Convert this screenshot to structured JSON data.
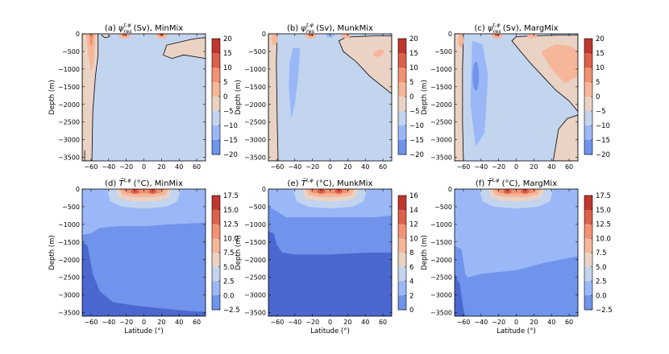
{
  "figure": {
    "panels": [
      {
        "title": "(a) ψ_res^{t,φ} (Sv), MinMix",
        "title_main": "ψ",
        "title_sup": "t,φ",
        "title_sub": "res",
        "title_rest": " (Sv), MinMix",
        "prefix": "(a) "
      },
      {
        "title": "(b) ψ_res^{t,φ} (Sv), MunkMix",
        "title_main": "ψ",
        "title_sup": "t,φ",
        "title_sub": "res",
        "title_rest": " (Sv), MunkMix",
        "prefix": "(b) "
      },
      {
        "title": "(c) ψ_res^{t,φ} (Sv), MargMix",
        "title_main": "ψ",
        "title_sup": "t,φ",
        "title_sub": "res",
        "title_rest": " (Sv), MargMix",
        "prefix": "(c) "
      },
      {
        "title": "(d) T̄^{t,φ} (°C), MinMix",
        "title_main": "T̄",
        "title_sup": "t,φ",
        "title_sub": "",
        "title_rest": " (°C), MinMix",
        "prefix": "(d) "
      },
      {
        "title": "(e) T̄^{t,φ} (°C), MunkMix",
        "title_main": "T̄",
        "title_sup": "t,φ",
        "title_sub": "",
        "title_rest": " (°C), MunkMix",
        "prefix": "(e) "
      },
      {
        "title": "(f) T̄^{t,φ} (°C), MargMix",
        "title_main": "T̄",
        "title_sup": "t,φ",
        "title_sub": "",
        "title_rest": " (°C), MargMix",
        "prefix": "(f) "
      }
    ],
    "ylabel": "Depth (m)",
    "xlabel": "Latitude (°)",
    "xticks": [
      "−60",
      "−40",
      "−20",
      "0",
      "20",
      "40",
      "60"
    ],
    "yticks": [
      "0",
      "−500",
      "−1000",
      "−1500",
      "−2000",
      "−2500",
      "−3000",
      "−3500"
    ],
    "colors": {
      "c_neg20": "#4a68cf",
      "c_neg15": "#7093eb",
      "c_neg10": "#9ab8f8",
      "c_neg5": "#c3d4ee",
      "c_0": "#ead3c4",
      "c_5": "#f5b69a",
      "c_10": "#f29272",
      "c_15": "#dd604b",
      "c_20": "#c0362d"
    }
  },
  "chart_data": [
    {
      "type": "contourf",
      "panel": "a",
      "variable": "residual overturning streamfunction",
      "units": "Sv",
      "experiment": "MinMix",
      "xlim": [
        -70,
        70
      ],
      "ylim": [
        -3600,
        0
      ],
      "colorbar": {
        "levels": [
          -20,
          -15,
          -10,
          -5,
          0,
          5,
          10,
          15,
          20
        ],
        "ticks": [
          "20",
          "15",
          "10",
          "5",
          "0",
          "−5",
          "−10",
          "−15",
          "−20"
        ]
      },
      "features": [
        {
          "region": "southern cell",
          "sign": "positive",
          "lat_range": [
            -70,
            -52
          ],
          "depth_range": [
            -3600,
            0
          ],
          "max_value": 15
        },
        {
          "region": "northern upper cell",
          "sign": "positive",
          "lat_range": [
            22,
            70
          ],
          "depth_range": [
            -700,
            -150
          ],
          "max_value": 5
        },
        {
          "region": "interior",
          "sign": "negative",
          "min_value": -5
        }
      ]
    },
    {
      "type": "contourf",
      "panel": "b",
      "variable": "residual overturning streamfunction",
      "units": "Sv",
      "experiment": "MunkMix",
      "xlim": [
        -70,
        70
      ],
      "ylim": [
        -3600,
        0
      ],
      "colorbar": {
        "levels": [
          -20,
          -15,
          -10,
          -5,
          0,
          5,
          10,
          15,
          20
        ],
        "ticks": [
          "20",
          "15",
          "10",
          "5",
          "0",
          "−5",
          "−10",
          "−15",
          "−20"
        ]
      },
      "features": [
        {
          "region": "southern cell",
          "sign": "positive",
          "lat_range": [
            -70,
            -58
          ],
          "depth_range": [
            -3600,
            0
          ],
          "max_value": 15
        },
        {
          "region": "northern cell",
          "sign": "positive",
          "lat_range": [
            10,
            70
          ],
          "depth_range": [
            -1700,
            0
          ],
          "max_value": 10
        },
        {
          "region": "southern interior",
          "sign": "negative",
          "min_value": -10
        }
      ]
    },
    {
      "type": "contourf",
      "panel": "c",
      "variable": "residual overturning streamfunction",
      "units": "Sv",
      "experiment": "MargMix",
      "xlim": [
        -70,
        70
      ],
      "ylim": [
        -3600,
        0
      ],
      "colorbar": {
        "levels": [
          -20,
          -15,
          -10,
          -5,
          0,
          5,
          10,
          15,
          20
        ],
        "ticks": [
          "20",
          "15",
          "10",
          "5",
          "0",
          "−5",
          "−10",
          "−15",
          "−20"
        ]
      },
      "features": [
        {
          "region": "southern cell",
          "sign": "positive",
          "lat_range": [
            -70,
            -60
          ],
          "depth_range": [
            -3600,
            0
          ],
          "max_value": 15
        },
        {
          "region": "northern cell",
          "sign": "positive",
          "lat_range": [
            -5,
            70
          ],
          "depth_range": [
            -1800,
            0
          ],
          "max_value": 10
        },
        {
          "region": "southern interior",
          "sign": "negative",
          "min_value": -15
        }
      ]
    },
    {
      "type": "contourf",
      "panel": "d",
      "variable": "temperature",
      "units": "°C",
      "experiment": "MinMix",
      "xlim": [
        -70,
        70
      ],
      "ylim": [
        -3600,
        0
      ],
      "colorbar": {
        "levels": [
          -2.5,
          0,
          2.5,
          5,
          7.5,
          10,
          12.5,
          15,
          17.5
        ],
        "ticks": [
          "17.5",
          "15.0",
          "12.5",
          "10.0",
          "7.5",
          "5.0",
          "2.5",
          "0.0",
          "−2.5"
        ]
      },
      "features": [
        {
          "region": "equatorial surface",
          "max_value": 17.5
        },
        {
          "region": "abyss south",
          "min_value": -2.5
        }
      ]
    },
    {
      "type": "contourf",
      "panel": "e",
      "variable": "temperature",
      "units": "°C",
      "experiment": "MunkMix",
      "xlim": [
        -70,
        70
      ],
      "ylim": [
        -3600,
        0
      ],
      "colorbar": {
        "levels": [
          0,
          2,
          4,
          6,
          8,
          10,
          12,
          14,
          16
        ],
        "ticks": [
          "16",
          "14",
          "12",
          "10",
          "8",
          "6",
          "4",
          "2",
          "0"
        ]
      },
      "features": [
        {
          "region": "equatorial surface",
          "max_value": 16
        },
        {
          "region": "abyss",
          "min_value": 0
        }
      ]
    },
    {
      "type": "contourf",
      "panel": "f",
      "variable": "temperature",
      "units": "°C",
      "experiment": "MargMix",
      "xlim": [
        -70,
        70
      ],
      "ylim": [
        -3600,
        0
      ],
      "colorbar": {
        "levels": [
          -2.5,
          0,
          2.5,
          5,
          7.5,
          10,
          12.5,
          15,
          17.5
        ],
        "ticks": [
          "17.5",
          "15.0",
          "12.5",
          "10.0",
          "7.5",
          "5.0",
          "2.5",
          "0.0",
          "−2.5"
        ]
      },
      "features": [
        {
          "region": "equatorial surface",
          "max_value": 17.5
        },
        {
          "region": "abyss south",
          "min_value": -2.5
        }
      ]
    }
  ]
}
